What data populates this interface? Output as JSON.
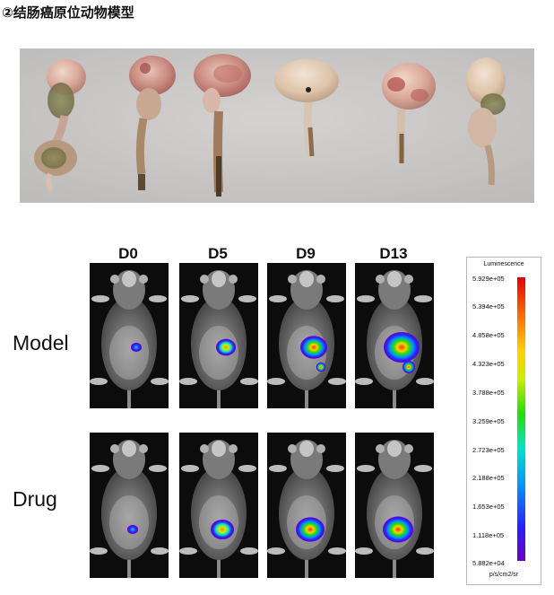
{
  "title": "②结肠癌原位动物模型",
  "columns": [
    "D0",
    "D5",
    "D9",
    "D13"
  ],
  "rows": [
    "Model",
    "Drug"
  ],
  "colorbar": {
    "title": "Luminescence",
    "ticks": [
      "5.929e+05",
      "5.394e+05",
      "4.858e+05",
      "4.323e+05",
      "3.788e+05",
      "3.259e+05",
      "2.723e+05",
      "2.188e+05",
      "1.653e+05",
      "1.118e+05",
      "5.882e+04"
    ],
    "unit": "p/s/cm2/sr",
    "colors": [
      "#6a00c8",
      "#2a20ff",
      "#0096ff",
      "#00e6c8",
      "#20e000",
      "#c8ee00",
      "#ffd000",
      "#ff7000",
      "#e80000"
    ]
  },
  "tissue_photo": {
    "specimen_count": 6
  },
  "signal_levels": {
    "Model": [
      0.1,
      0.35,
      0.55,
      0.8
    ],
    "Drug": [
      0.1,
      0.45,
      0.6,
      0.65
    ]
  }
}
